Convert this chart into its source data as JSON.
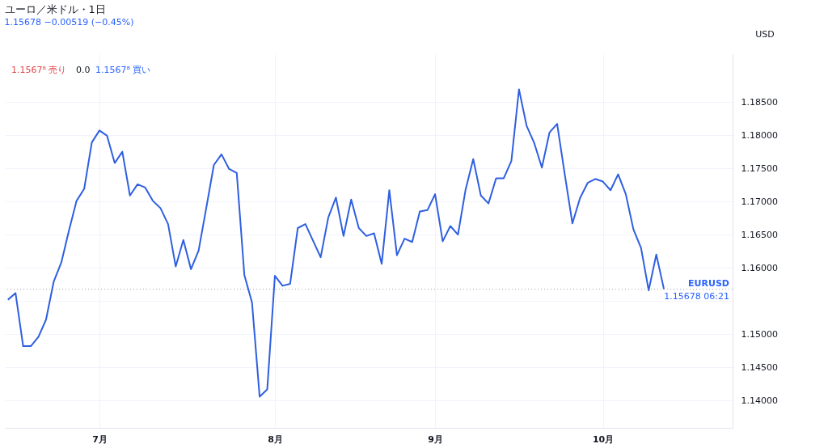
{
  "chart_data": {
    "type": "line",
    "title": "ユーロ／米ドル・1日",
    "subtitle": "1.15678 −0.00519 (−0.45%)",
    "categories": [
      null,
      null,
      null,
      null,
      null,
      null,
      null,
      null,
      null,
      null,
      null,
      null,
      "7月",
      null,
      null,
      null,
      null,
      null,
      null,
      null,
      null,
      null,
      null,
      null,
      null,
      null,
      null,
      null,
      null,
      null,
      null,
      null,
      null,
      null,
      null,
      "8月",
      null,
      null,
      null,
      null,
      null,
      null,
      null,
      null,
      null,
      null,
      null,
      null,
      null,
      null,
      null,
      null,
      null,
      null,
      null,
      null,
      "9月",
      null,
      null,
      null,
      null,
      null,
      null,
      null,
      null,
      null,
      null,
      null,
      null,
      null,
      null,
      null,
      null,
      null,
      null,
      null,
      null,
      null,
      "10月",
      null,
      null,
      null,
      null,
      null,
      null,
      null,
      null
    ],
    "series": [
      {
        "color": "#2f5fe0",
        "values": [
          1.1552,
          1.1562,
          1.1482,
          1.1482,
          1.1496,
          1.1522,
          1.1579,
          1.1608,
          1.1656,
          1.1701,
          1.1719,
          1.1789,
          1.1807,
          1.1799,
          1.1758,
          1.1775,
          1.1709,
          1.1726,
          1.1721,
          1.1701,
          1.169,
          1.1666,
          1.1602,
          1.1642,
          1.1598,
          1.1626,
          1.169,
          1.1755,
          1.1771,
          1.1749,
          1.1743,
          1.1589,
          1.1548,
          1.1406,
          1.1417,
          1.1588,
          1.1573,
          1.1576,
          1.166,
          1.1666,
          1.1641,
          1.1616,
          1.1676,
          1.1706,
          1.1648,
          1.1703,
          1.166,
          1.1648,
          1.1652,
          1.1606,
          1.1717,
          1.1619,
          1.1644,
          1.1639,
          1.1685,
          1.1687,
          1.1711,
          1.164,
          1.1663,
          1.165,
          1.1718,
          1.1764,
          1.1709,
          1.1697,
          1.1735,
          1.1735,
          1.1761,
          1.1869,
          1.1814,
          1.1788,
          1.1751,
          1.1804,
          1.1817,
          1.1741,
          1.1667,
          1.1705,
          1.1728,
          1.1734,
          1.173,
          1.1717,
          1.1741,
          1.1711,
          1.1658,
          1.163,
          1.1566,
          1.162,
          1.15678
        ]
      }
    ],
    "ylim": [
      1.1359,
      1.1922
    ],
    "yticks": [
      {
        "value": 1.14,
        "label": "1.14000"
      },
      {
        "value": 1.145,
        "label": "1.14500"
      },
      {
        "value": 1.15,
        "label": "1.15000"
      },
      {
        "value": 1.155,
        "label": null
      },
      {
        "value": 1.16,
        "label": "1.16000"
      },
      {
        "value": 1.165,
        "label": "1.16500"
      },
      {
        "value": 1.17,
        "label": "1.17000"
      },
      {
        "value": 1.175,
        "label": "1.17500"
      },
      {
        "value": 1.18,
        "label": "1.18000"
      },
      {
        "value": 1.185,
        "label": "1.18500"
      }
    ],
    "ref_lines": [
      {
        "axis": "y",
        "value": 1.15678,
        "label": "EURUSD",
        "line_style": "dotted",
        "color": "#9aa0b0"
      }
    ],
    "annotations": [
      "1.1567⁸ 売り",
      "0.0",
      "1.1567⁸ 買い",
      "1.15678 06:21",
      "USD"
    ],
    "grid": true,
    "marker": "none",
    "line_style": "solid"
  }
}
